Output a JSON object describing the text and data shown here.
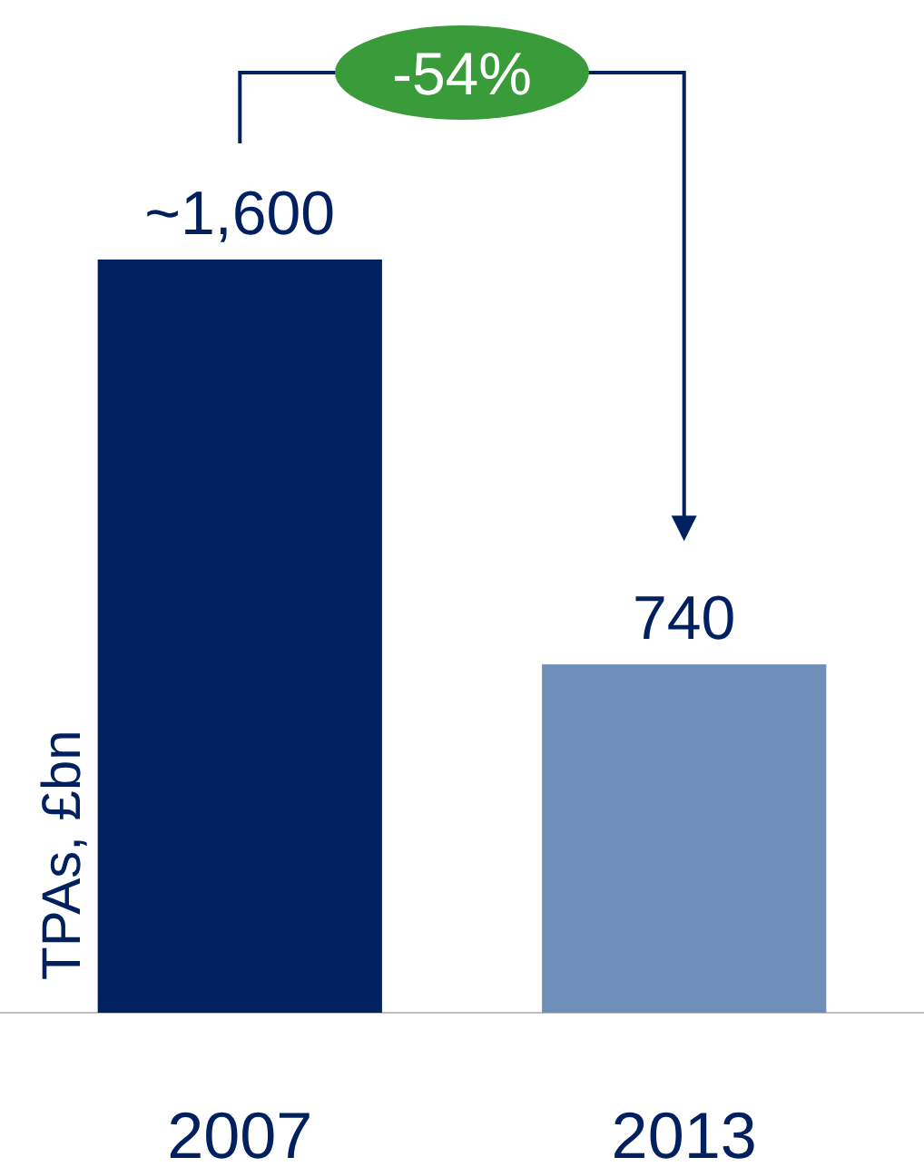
{
  "chart_data": {
    "type": "bar",
    "ylabel": "TPAs, £bn",
    "categories": [
      "2007",
      "2013"
    ],
    "values": [
      1600,
      740
    ],
    "colors": [
      "#002060",
      "#6f8fbb"
    ],
    "value_labels": [
      "~1,600",
      "740"
    ],
    "annotations": [
      "-54%"
    ]
  }
}
